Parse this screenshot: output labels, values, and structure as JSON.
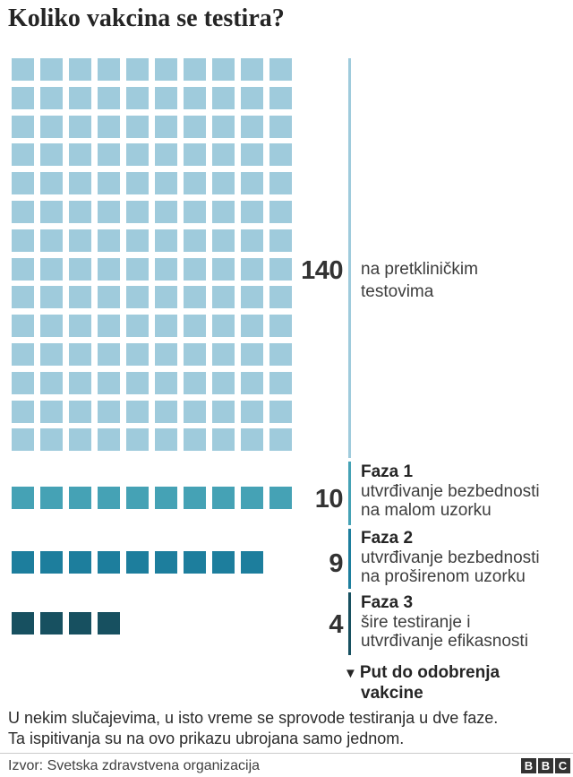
{
  "title": "Koliko vakcina se testira?",
  "chart_data": {
    "type": "bar",
    "variant": "waffle-pictogram",
    "categories": [
      "na pretkliničkim testovima",
      "Faza 1 — utvrđivanje bezbednosti na malom uzorku",
      "Faza 2 — utvrđivanje bezbednosti na proširenom uzorku",
      "Faza 3 — šire testiranje i utvrđivanje efikasnosti"
    ],
    "values": [
      140,
      10,
      9,
      4
    ],
    "colors": [
      "#9fcbdc",
      "#45a2b5",
      "#1d7e9d",
      "#175060"
    ],
    "title": "Koliko vakcina se testira?",
    "legend_position": "right",
    "grid": false,
    "annotation": "Put do odobrenja vakcine"
  },
  "stages": [
    {
      "value": 140,
      "value_label": "140",
      "phase_name": "",
      "desc_line1": "na pretkliničkim",
      "desc_line2": "testovima",
      "color": "#9fcbdc"
    },
    {
      "value": 10,
      "value_label": "10",
      "phase_name": "Faza 1",
      "desc_line1": "utvrđivanje bezbednosti",
      "desc_line2": "na malom uzorku",
      "color": "#45a2b5"
    },
    {
      "value": 9,
      "value_label": "9",
      "phase_name": "Faza 2",
      "desc_line1": "utvrđivanje bezbednosti",
      "desc_line2": "na proširenom uzorku",
      "color": "#1d7e9d"
    },
    {
      "value": 4,
      "value_label": "4",
      "phase_name": "Faza 3",
      "desc_line1": "šire testiranje i",
      "desc_line2": "utvrđivanje efikasnosti",
      "color": "#175060"
    }
  ],
  "approval": {
    "marker": "▼",
    "line1": "Put do odobrenja",
    "line2": "vakcine"
  },
  "footnote": {
    "line1": "U nekim slučajevima, u isto vreme se sprovode testiranja u dve faze.",
    "line2": "Ta ispitivanja su na ovo prikazu ubrojana samo jednom."
  },
  "source": "Izvor: Svetska zdravstvena organizacija",
  "logo": {
    "letters": [
      "B",
      "B",
      "C"
    ]
  }
}
